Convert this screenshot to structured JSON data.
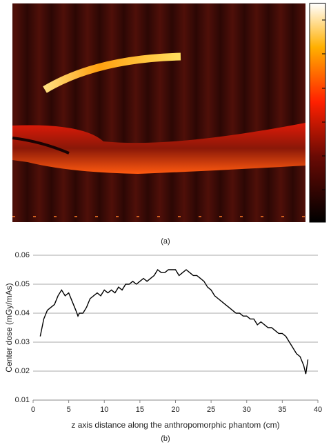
{
  "panels": {
    "a": "(a)"
  },
  "chart_data": {
    "type": "line",
    "caption": "(b)",
    "ylabel": "Center dose (mGy/mAs)",
    "xlabel": "z axis distance along the anthropomorphic phantom (cm)",
    "x": [
      1.0,
      1.5,
      2.0,
      2.5,
      3.0,
      3.5,
      4.0,
      4.5,
      5.0,
      5.5,
      6.0,
      6.3,
      6.5,
      7.0,
      7.5,
      8.0,
      8.5,
      9.0,
      9.5,
      10.0,
      10.5,
      11.0,
      11.5,
      12.0,
      12.5,
      13.0,
      13.5,
      14.0,
      14.5,
      15.0,
      15.5,
      16.0,
      16.5,
      17.0,
      17.5,
      18.0,
      18.5,
      19.0,
      19.5,
      20.0,
      20.5,
      21.0,
      21.5,
      22.0,
      22.5,
      23.0,
      23.5,
      24.0,
      24.5,
      25.0,
      25.5,
      26.0,
      26.5,
      27.0,
      27.5,
      28.0,
      28.5,
      29.0,
      29.5,
      30.0,
      30.5,
      31.0,
      31.5,
      32.0,
      32.5,
      33.0,
      33.5,
      34.0,
      34.5,
      35.0,
      35.5,
      36.0,
      36.5,
      37.0,
      37.5,
      38.0,
      38.3,
      38.6
    ],
    "series": [
      {
        "color": "#000000",
        "values": [
          0.032,
          0.038,
          0.041,
          0.042,
          0.043,
          0.046,
          0.048,
          0.046,
          0.047,
          0.044,
          0.041,
          0.039,
          0.04,
          0.04,
          0.042,
          0.045,
          0.046,
          0.047,
          0.046,
          0.048,
          0.047,
          0.048,
          0.047,
          0.049,
          0.048,
          0.05,
          0.05,
          0.051,
          0.05,
          0.051,
          0.052,
          0.051,
          0.052,
          0.053,
          0.055,
          0.054,
          0.054,
          0.055,
          0.055,
          0.055,
          0.053,
          0.054,
          0.055,
          0.054,
          0.053,
          0.053,
          0.052,
          0.051,
          0.049,
          0.048,
          0.046,
          0.045,
          0.044,
          0.043,
          0.042,
          0.041,
          0.04,
          0.04,
          0.039,
          0.039,
          0.038,
          0.038,
          0.036,
          0.037,
          0.036,
          0.035,
          0.035,
          0.034,
          0.033,
          0.033,
          0.032,
          0.03,
          0.028,
          0.026,
          0.025,
          0.022,
          0.019,
          0.024
        ]
      }
    ],
    "xlim": [
      0,
      40
    ],
    "xticks": [
      0,
      5,
      10,
      15,
      20,
      25,
      30,
      35,
      40
    ],
    "ylim": [
      0.01,
      0.06
    ],
    "yticks": [
      0.01,
      0.02,
      0.03,
      0.04,
      0.05,
      0.06
    ],
    "grid": true
  }
}
